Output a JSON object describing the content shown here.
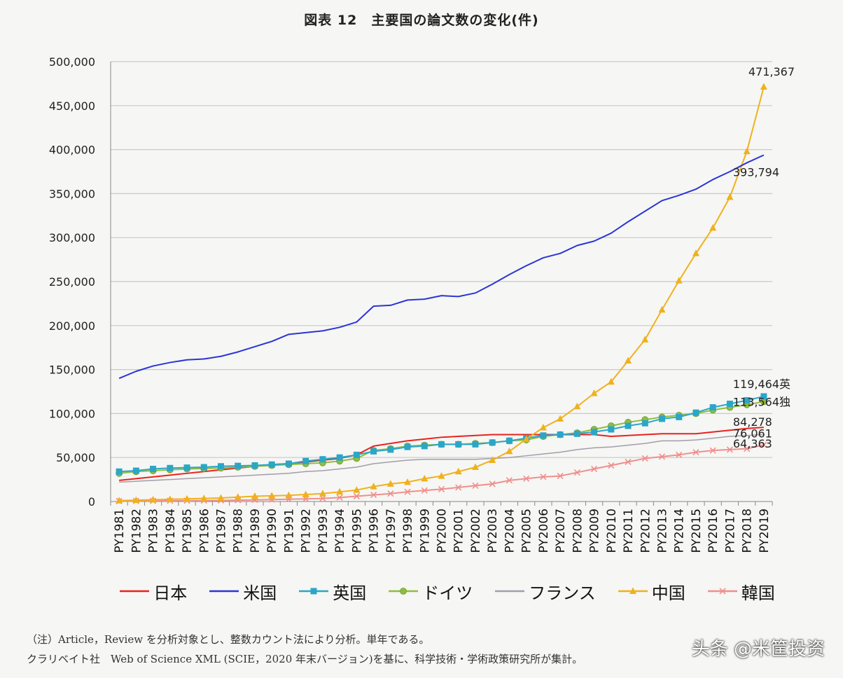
{
  "chart_data": {
    "type": "line",
    "title": "図表 12　主要国の論文数の変化(件)",
    "ylim": [
      0,
      500000
    ],
    "yticks": [
      0,
      50000,
      100000,
      150000,
      200000,
      250000,
      300000,
      350000,
      400000,
      450000,
      500000
    ],
    "ytick_labels": [
      "0",
      "50,000",
      "100,000",
      "150,000",
      "200,000",
      "250,000",
      "300,000",
      "350,000",
      "400,000",
      "450,000",
      "500,000"
    ],
    "grid": "horizontal",
    "legend_position": "bottom",
    "categories": [
      "PY1981",
      "PY1982",
      "PY1983",
      "PY1984",
      "PY1985",
      "PY1986",
      "PY1987",
      "PY1988",
      "PY1989",
      "PY1990",
      "PY1991",
      "PY1992",
      "PY1993",
      "PY1994",
      "PY1995",
      "PY1996",
      "PY1997",
      "PY1998",
      "PY1999",
      "PY2000",
      "PY2001",
      "PY2002",
      "PY2003",
      "PY2004",
      "PY2005",
      "PY2006",
      "PY2007",
      "PY2008",
      "PY2009",
      "PY2010",
      "PY2011",
      "PY2012",
      "PY2013",
      "PY2014",
      "PY2015",
      "PY2016",
      "PY2017",
      "PY2018",
      "PY2019"
    ],
    "series": [
      {
        "name": "日本",
        "color": "#e8231f",
        "marker": "none",
        "values": [
          24000,
          26000,
          28000,
          30000,
          32000,
          34000,
          36000,
          38000,
          40000,
          42000,
          43000,
          45000,
          47000,
          49000,
          53000,
          63000,
          66000,
          69000,
          71000,
          73000,
          74000,
          75000,
          76000,
          76000,
          76000,
          76000,
          76000,
          76000,
          76000,
          74000,
          75000,
          76000,
          77000,
          77000,
          77000,
          79000,
          81000,
          83000,
          84278
        ]
      },
      {
        "name": "米国",
        "color": "#2b35d6",
        "marker": "none",
        "values": [
          140000,
          148000,
          154000,
          158000,
          161000,
          162000,
          165000,
          170000,
          176000,
          182000,
          190000,
          192000,
          194000,
          198000,
          204000,
          222000,
          223000,
          229000,
          230000,
          234000,
          233000,
          237000,
          247000,
          258000,
          268000,
          277000,
          282000,
          291000,
          296000,
          305000,
          318000,
          330000,
          342000,
          348000,
          355000,
          366000,
          375000,
          385000,
          393794
        ]
      },
      {
        "name": "英国",
        "color": "#2ba6c7",
        "marker": "square",
        "values": [
          34000,
          35000,
          37000,
          38000,
          38500,
          39000,
          40000,
          40500,
          41000,
          42000,
          43000,
          46000,
          48000,
          50000,
          53000,
          57000,
          59000,
          62000,
          63000,
          65000,
          65000,
          65000,
          67000,
          69000,
          72000,
          75000,
          76000,
          77000,
          79000,
          82000,
          86000,
          89000,
          94000,
          96000,
          101000,
          107000,
          111000,
          115000,
          119464
        ]
      },
      {
        "name": "ドイツ",
        "color": "#8fbe3f",
        "marker": "circle",
        "values": [
          32000,
          34000,
          35000,
          36000,
          37000,
          37500,
          38000,
          39000,
          40000,
          41000,
          42000,
          43000,
          44000,
          46000,
          49000,
          58000,
          60000,
          63000,
          64000,
          65000,
          65000,
          66000,
          67000,
          69000,
          70000,
          74000,
          76000,
          78000,
          82000,
          86000,
          90000,
          93000,
          96000,
          98000,
          100000,
          104000,
          107000,
          110000,
          113564
        ]
      },
      {
        "name": "フランス",
        "color": "#a39daa",
        "marker": "none",
        "values": [
          22000,
          23000,
          24000,
          25000,
          26000,
          27000,
          28000,
          29000,
          30000,
          31000,
          32000,
          34000,
          35000,
          37000,
          39000,
          43000,
          45000,
          47000,
          48000,
          48000,
          48000,
          48000,
          49000,
          50000,
          52000,
          54000,
          56000,
          59000,
          61000,
          62000,
          64000,
          66000,
          69000,
          69000,
          70000,
          72000,
          74000,
          75000,
          76061
        ]
      },
      {
        "name": "中国",
        "color": "#f0b11d",
        "marker": "triangle",
        "values": [
          1000,
          1500,
          2000,
          2500,
          3000,
          3500,
          4000,
          5000,
          6000,
          6500,
          7000,
          8000,
          9000,
          11000,
          13000,
          17000,
          20000,
          22000,
          26000,
          29000,
          34000,
          39000,
          47000,
          57000,
          71000,
          84000,
          94000,
          108000,
          123000,
          136000,
          160000,
          184000,
          218000,
          251000,
          282000,
          311000,
          346000,
          398000,
          471367
        ]
      },
      {
        "name": "韓国",
        "color": "#ef8f8c",
        "marker": "x",
        "values": [
          500,
          600,
          700,
          800,
          900,
          1000,
          1200,
          1500,
          1800,
          2200,
          2600,
          3000,
          3500,
          4500,
          6000,
          7500,
          9000,
          11000,
          12500,
          14000,
          16000,
          18000,
          20000,
          24000,
          26000,
          28000,
          29000,
          33000,
          37000,
          41000,
          45000,
          49000,
          51000,
          53000,
          56000,
          58000,
          59000,
          60000,
          64363
        ]
      }
    ],
    "annotations": [
      {
        "series": "中国",
        "text": "471,367"
      },
      {
        "series": "米国",
        "text": "393,794"
      },
      {
        "series": "英国",
        "text": "119,464英"
      },
      {
        "series": "ドイツ",
        "text": "113,564独"
      },
      {
        "series": "日本",
        "text": "84,278"
      },
      {
        "series": "フランス",
        "text": "76,061"
      },
      {
        "series": "韓国",
        "text": "64,363"
      }
    ]
  },
  "notes": {
    "line1": "（注）Article，Review を分析対象とし、整数カウント法により分析。単年である。",
    "line2": "クラリベイト社　Web of Science XML (SCIE，2020 年末バージョン)を基に、科学技術・学術政策研究所が集計。"
  },
  "watermark": "头条 @米筐投资"
}
